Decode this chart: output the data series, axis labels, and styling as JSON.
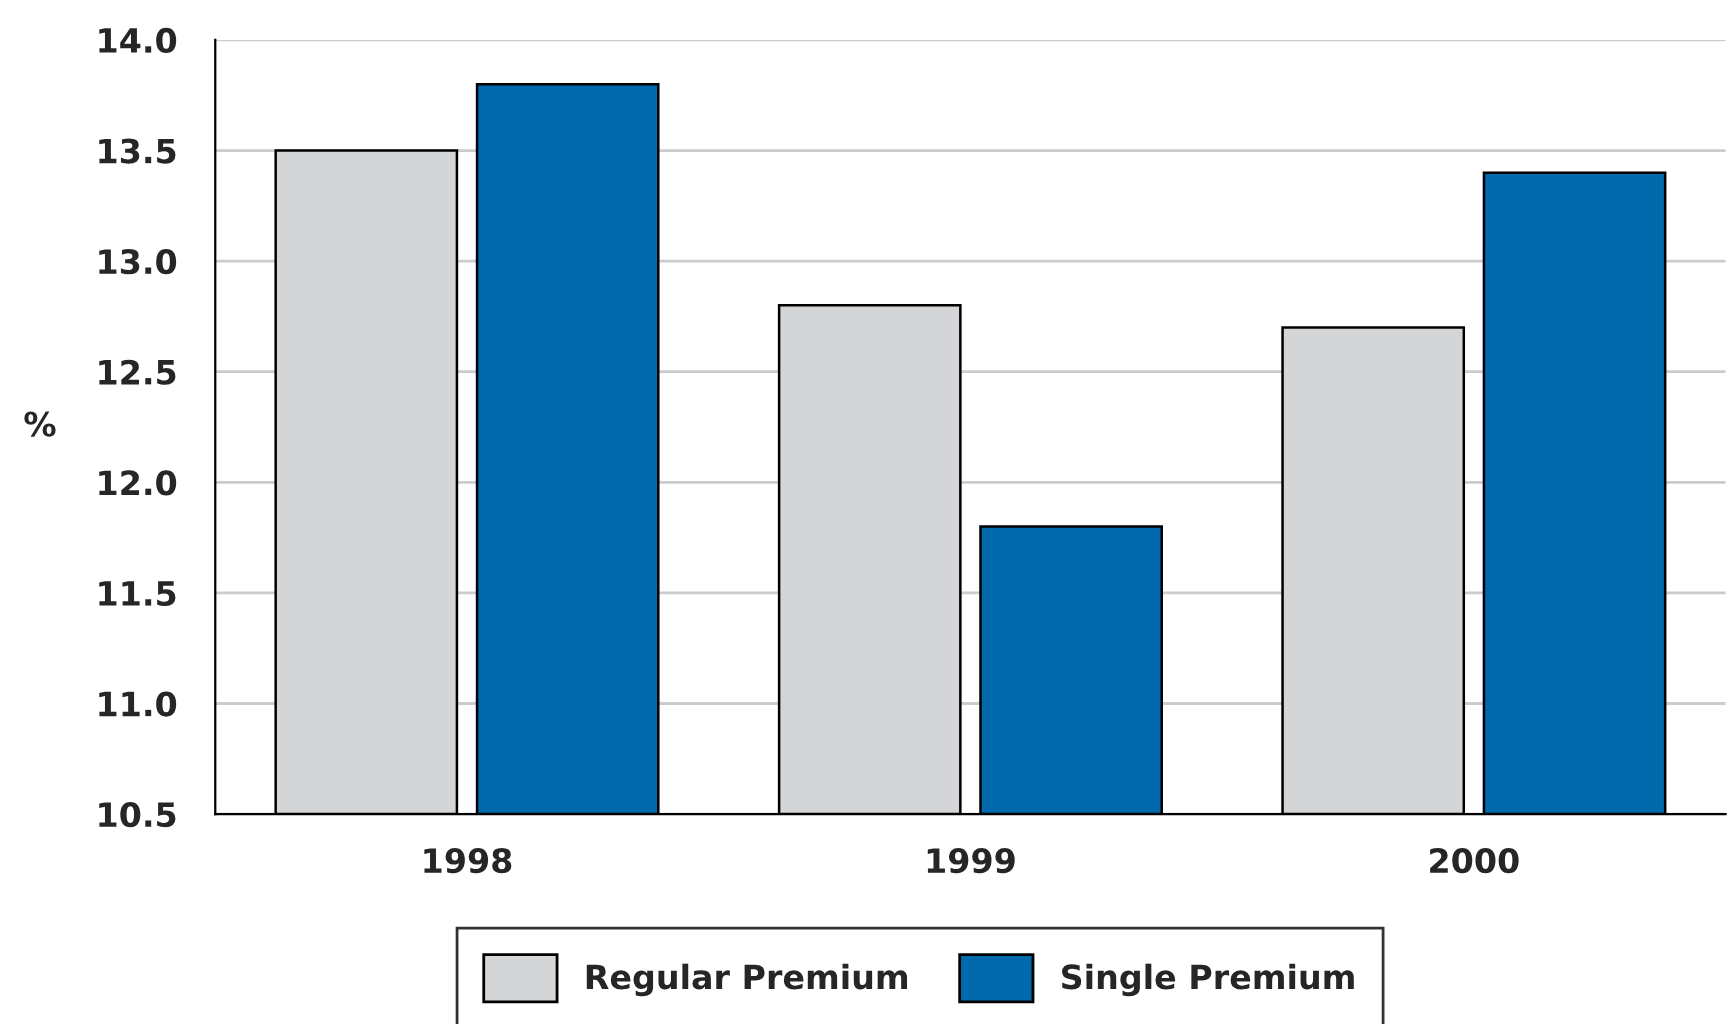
{
  "chart_data": {
    "type": "bar",
    "ylabel": "%",
    "categories": [
      "1998",
      "1999",
      "2000"
    ],
    "series": [
      {
        "name": "Regular Premium",
        "color": "#d4d5d7",
        "values": [
          13.5,
          12.8,
          12.7
        ]
      },
      {
        "name": "Single Premium",
        "color": "#006aad",
        "values": [
          13.8,
          11.8,
          13.4
        ]
      }
    ],
    "ylim": [
      10.5,
      14.0
    ],
    "yticks": [
      {
        "value": 10.5,
        "label": "10.5"
      },
      {
        "value": 11.0,
        "label": "11.0"
      },
      {
        "value": 11.5,
        "label": "11.5"
      },
      {
        "value": 12.0,
        "label": "12.0"
      },
      {
        "value": 12.5,
        "label": "12.5"
      },
      {
        "value": 13.0,
        "label": "13.0"
      },
      {
        "value": 13.5,
        "label": "13.5"
      },
      {
        "value": 14.0,
        "label": "14.0"
      }
    ],
    "grid": "y",
    "legend": "bottom"
  }
}
